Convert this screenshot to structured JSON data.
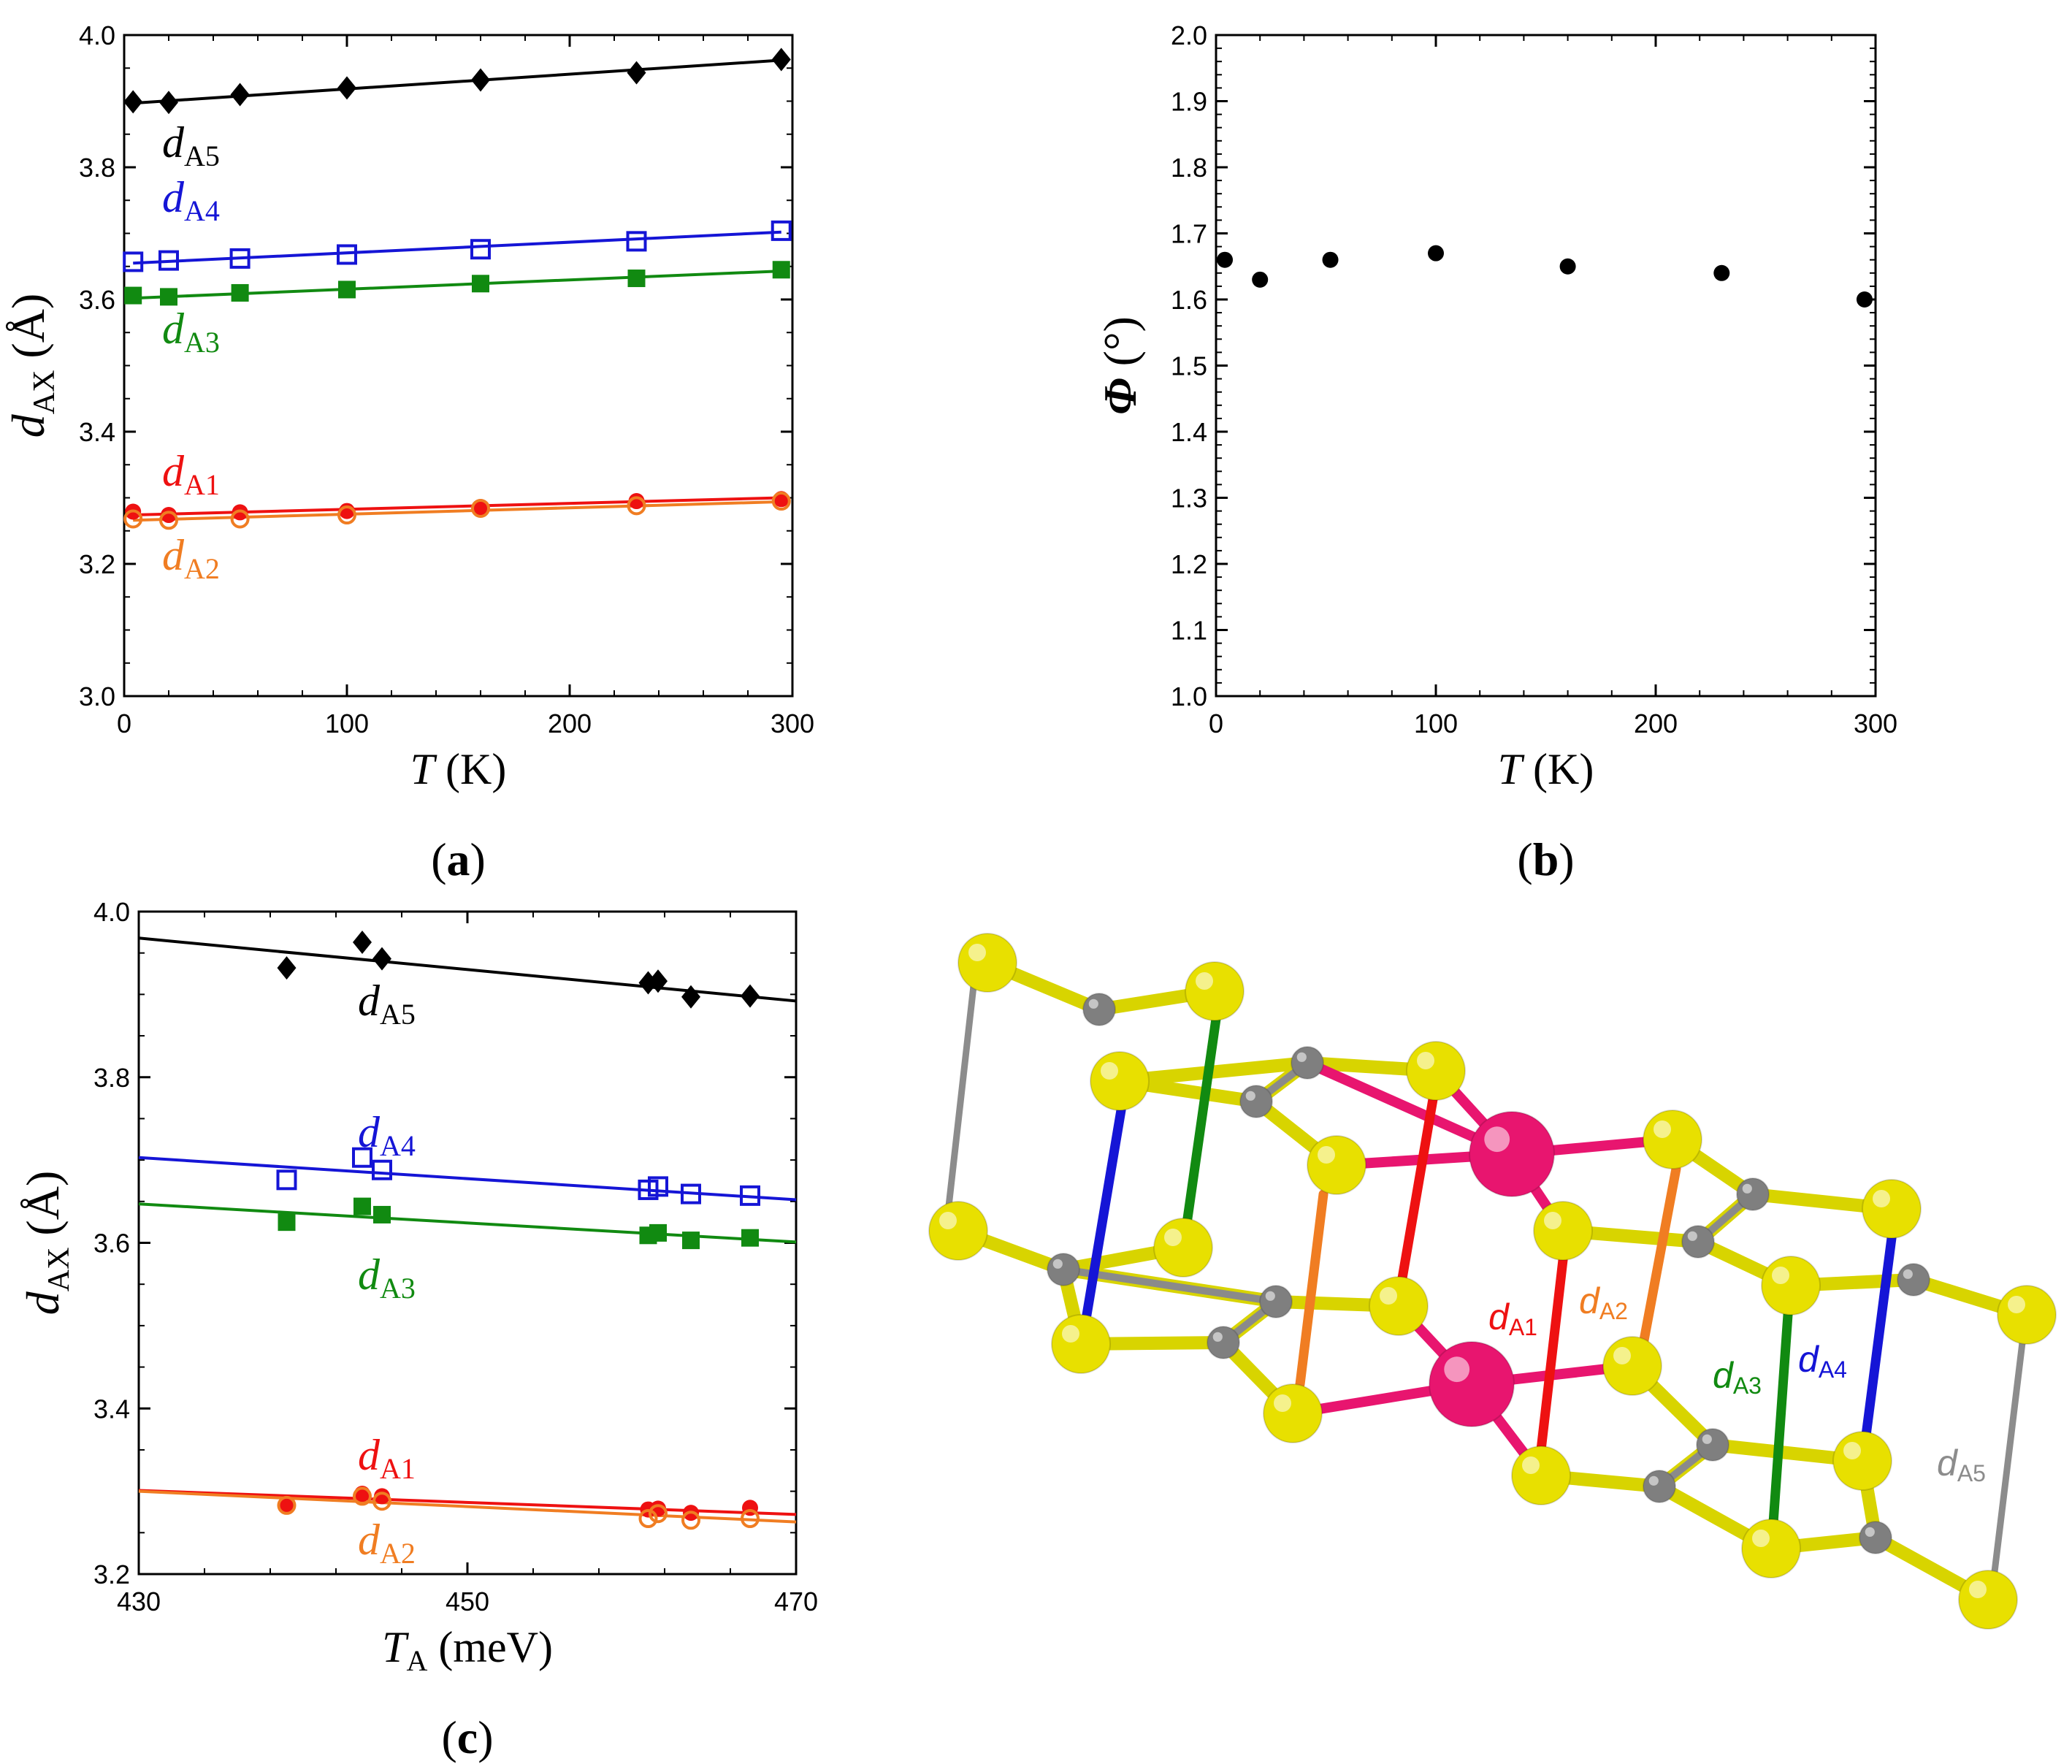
{
  "colors": {
    "A5": "#000000",
    "A4": "#1515d6",
    "A3": "#118a11",
    "A1": "#ee1111",
    "A2": "#f07d22",
    "sulfur": "#e8e000",
    "carbon": "#7f7f7f",
    "metal": "#e8156f",
    "bond_grey": "#8c8c8c"
  },
  "chart_data": [
    {
      "type": "scatter",
      "panel_label": "(a)",
      "xlabel": "T (K)",
      "ylabel": "d_AX (Å)",
      "xlim": [
        0,
        300
      ],
      "ylim": [
        3.0,
        4.0
      ],
      "xticks": [
        "0",
        "100",
        "200",
        "300"
      ],
      "yticks": [
        "3.0",
        "3.2",
        "3.4",
        "3.6",
        "3.8",
        "4.0"
      ],
      "x": [
        4,
        20,
        52,
        100,
        160,
        230,
        295
      ],
      "series": [
        {
          "name": "dA5",
          "label_main": "d",
          "label_sub": "A5",
          "marker": "diamond-filled",
          "color": "#000000",
          "values": [
            3.899,
            3.898,
            3.91,
            3.92,
            3.932,
            3.943,
            3.963
          ],
          "fit": [
            3.897,
            3.962
          ]
        },
        {
          "name": "dA4",
          "label_main": "d",
          "label_sub": "A4",
          "marker": "square-open",
          "color": "#1515d6",
          "values": [
            3.657,
            3.659,
            3.662,
            3.668,
            3.676,
            3.688,
            3.704
          ],
          "fit": [
            3.655,
            3.702
          ]
        },
        {
          "name": "dA3",
          "label_main": "d",
          "label_sub": "A3",
          "marker": "square-filled",
          "color": "#118a11",
          "values": [
            3.606,
            3.604,
            3.61,
            3.615,
            3.624,
            3.632,
            3.645
          ],
          "fit": [
            3.602,
            3.643
          ]
        },
        {
          "name": "dA1",
          "label_main": "d",
          "label_sub": "A1",
          "marker": "circle-filled",
          "color": "#ee1111",
          "values": [
            3.279,
            3.274,
            3.278,
            3.28,
            3.286,
            3.295,
            3.298
          ],
          "fit": [
            3.274,
            3.3
          ]
        },
        {
          "name": "dA2",
          "label_main": "d",
          "label_sub": "A2",
          "marker": "circle-open",
          "color": "#f07d22",
          "values": [
            3.268,
            3.266,
            3.268,
            3.274,
            3.284,
            3.288,
            3.295
          ],
          "fit": [
            3.266,
            3.294
          ]
        }
      ]
    },
    {
      "type": "scatter",
      "panel_label": "(b)",
      "xlabel": "T (K)",
      "ylabel": "Φ (°)",
      "xlim": [
        0,
        300
      ],
      "ylim": [
        1.0,
        2.0
      ],
      "xticks": [
        "0",
        "100",
        "200",
        "300"
      ],
      "yticks": [
        "1.0",
        "1.1",
        "1.2",
        "1.3",
        "1.4",
        "1.5",
        "1.6",
        "1.7",
        "1.8",
        "1.9",
        "2.0"
      ],
      "x": [
        4,
        20,
        52,
        100,
        160,
        230,
        295
      ],
      "series": [
        {
          "name": "Phi",
          "marker": "circle-filled",
          "color": "#000000",
          "values": [
            1.66,
            1.63,
            1.66,
            1.67,
            1.65,
            1.64,
            1.6
          ]
        }
      ]
    },
    {
      "type": "scatter",
      "panel_label": "(c)",
      "xlabel": "T_A (meV)",
      "ylabel": "d_AX (Å)",
      "xlim": [
        430,
        470
      ],
      "ylim": [
        3.2,
        4.0
      ],
      "xticks": [
        "430",
        "450",
        "470"
      ],
      "yticks": [
        "3.2",
        "3.4",
        "3.6",
        "3.8",
        "4.0"
      ],
      "x": [
        439.0,
        443.6,
        444.8,
        461.0,
        461.6,
        463.6,
        467.2
      ],
      "series": [
        {
          "name": "dA5",
          "label_main": "d",
          "label_sub": "A5",
          "marker": "diamond-filled",
          "color": "#000000",
          "values": [
            3.932,
            3.963,
            3.943,
            3.914,
            3.916,
            3.897,
            3.898
          ],
          "fit": [
            3.968,
            3.892
          ]
        },
        {
          "name": "dA4",
          "label_main": "d",
          "label_sub": "A4",
          "marker": "square-open",
          "color": "#1515d6",
          "values": [
            3.676,
            3.703,
            3.688,
            3.664,
            3.668,
            3.659,
            3.657
          ],
          "fit": [
            3.703,
            3.652
          ]
        },
        {
          "name": "dA3",
          "label_main": "d",
          "label_sub": "A3",
          "marker": "square-filled",
          "color": "#118a11",
          "values": [
            3.625,
            3.644,
            3.634,
            3.609,
            3.612,
            3.603,
            3.606
          ],
          "fit": [
            3.647,
            3.601
          ]
        },
        {
          "name": "dA1",
          "label_main": "d",
          "label_sub": "A1",
          "marker": "circle-filled",
          "color": "#ee1111",
          "values": [
            3.284,
            3.297,
            3.294,
            3.278,
            3.279,
            3.274,
            3.28
          ],
          "fit": [
            3.301,
            3.272
          ]
        },
        {
          "name": "dA2",
          "label_main": "d",
          "label_sub": "A2",
          "marker": "circle-open",
          "color": "#f07d22",
          "values": [
            3.283,
            3.294,
            3.288,
            3.267,
            3.273,
            3.265,
            3.267
          ],
          "fit": [
            3.3,
            3.263
          ]
        }
      ]
    }
  ],
  "structure": {
    "labels": [
      {
        "name": "dA1",
        "main": "d",
        "sub": "A1",
        "color": "#ee1111"
      },
      {
        "name": "dA2",
        "main": "d",
        "sub": "A2",
        "color": "#f07d22"
      },
      {
        "name": "dA3",
        "main": "d",
        "sub": "A3",
        "color": "#118a11"
      },
      {
        "name": "dA4",
        "main": "d",
        "sub": "A4",
        "color": "#1515d6"
      },
      {
        "name": "dA5",
        "main": "d",
        "sub": "A5",
        "color": "#8c8c8c"
      }
    ]
  }
}
